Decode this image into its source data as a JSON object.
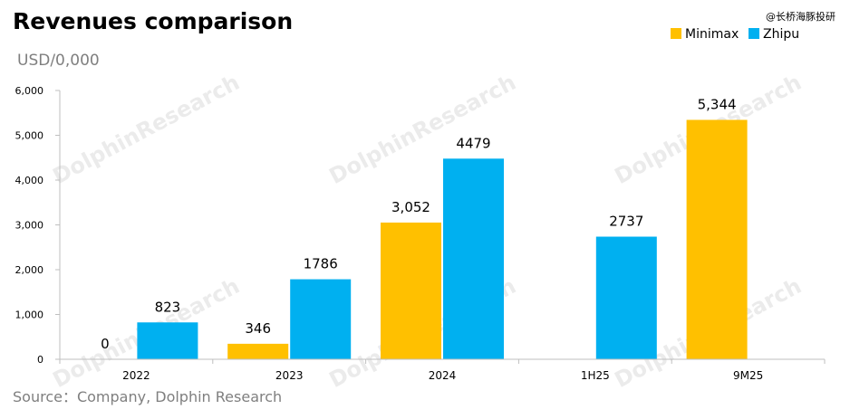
{
  "colors": {
    "minimax": "#ffc000",
    "zhipu": "#00b0f0",
    "axis": "#bfbfbf",
    "watermark": "#d9d9d9"
  },
  "header": {
    "title": "Revenues comparison",
    "unit": "USD/0,000",
    "credit": "@长桥海豚投研"
  },
  "footer": {
    "source": "Source：Company, Dolphin Research"
  },
  "watermark": "DolphinResearch",
  "chart_data": {
    "type": "bar",
    "title": "Revenues comparison",
    "ylabel": "USD/0,000",
    "ylim": [
      0,
      6000
    ],
    "yticks": [
      "0",
      "1,000",
      "2,000",
      "3,000",
      "4,000",
      "5,000",
      "6,000"
    ],
    "categories": [
      "2022",
      "2023",
      "2024",
      "1H25",
      "9M25"
    ],
    "legend_position": "top-right",
    "series": [
      {
        "name": "Minimax",
        "color": "#ffc000",
        "values": [
          0,
          346,
          3052,
          null,
          5344
        ],
        "labels": [
          "0",
          "346",
          "3,052",
          "",
          "5,344"
        ]
      },
      {
        "name": "Zhipu",
        "color": "#00b0f0",
        "values": [
          823,
          1786,
          4479,
          2737,
          null
        ],
        "labels": [
          "823",
          "1786",
          "4479",
          "2737",
          ""
        ]
      }
    ]
  }
}
